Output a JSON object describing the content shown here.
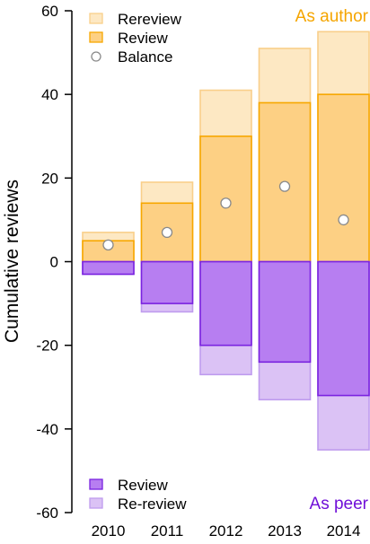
{
  "chart_data": {
    "type": "bar",
    "categories": [
      "2010",
      "2011",
      "2012",
      "2013",
      "2014"
    ],
    "ylabel": "Cumulative reviews",
    "ylim": [
      -60,
      60
    ],
    "y_ticks": [
      60,
      40,
      20,
      0,
      -20,
      -40,
      -60
    ],
    "grid": false,
    "author_label": "As author",
    "peer_label": "As peer",
    "series": [
      {
        "name": "Rereview",
        "group": "author",
        "values": [
          7,
          19,
          41,
          51,
          55
        ]
      },
      {
        "name": "Review",
        "group": "author",
        "values": [
          5,
          14,
          30,
          38,
          40
        ]
      },
      {
        "name": "Balance",
        "group": "balance",
        "values": [
          4,
          7,
          14,
          18,
          10
        ]
      },
      {
        "name": "Review",
        "group": "peer",
        "values": [
          -3,
          -10,
          -20,
          -24,
          -32
        ]
      },
      {
        "name": "Re-review",
        "group": "peer",
        "values": [
          -3,
          -12,
          -27,
          -33,
          -45
        ]
      }
    ],
    "legend_top": [
      "Rereview",
      "Review",
      "Balance"
    ],
    "legend_bottom": [
      "Review",
      "Re-review"
    ],
    "legend_placement": [
      "top-left",
      "bottom-left"
    ]
  },
  "colors": {
    "author_review_fill": "#fdd084",
    "author_review_stroke": "#f7a700",
    "author_rereview_fill": "#fde8c3",
    "author_rereview_stroke": "#f9cf8a",
    "peer_review_fill": "#b77ef1",
    "peer_review_stroke": "#7a22e0",
    "peer_rereview_fill": "#dbc2f5",
    "peer_rereview_stroke": "#bf9cee",
    "balance_fill": "#ffffff",
    "balance_stroke": "#8a8a8a",
    "author_label": "#f5a500",
    "peer_label": "#7010d8"
  }
}
